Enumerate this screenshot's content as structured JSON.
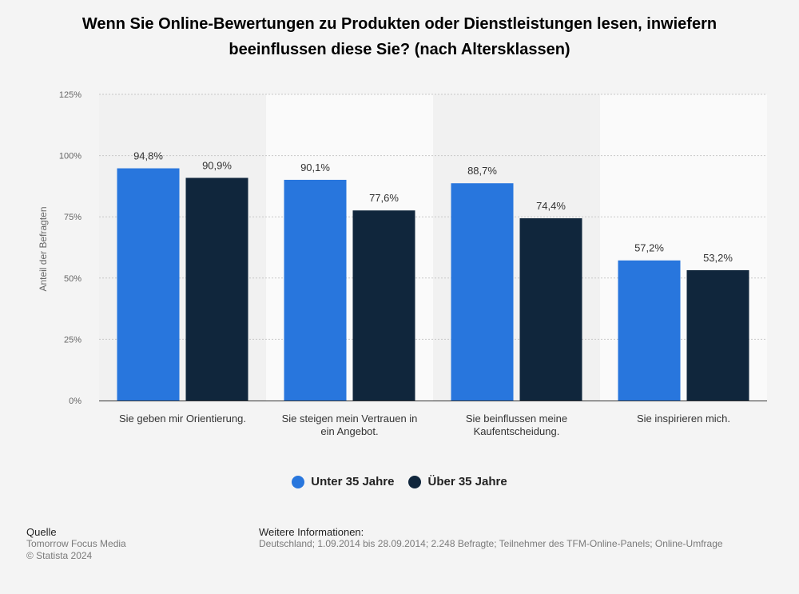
{
  "chart_data": {
    "type": "bar",
    "title": "Wenn Sie Online-Bewertungen zu Produkten oder Dienstleistungen lesen, inwiefern beeinflussen diese Sie? (nach Altersklassen)",
    "ylabel": "Anteil der Befragten",
    "xlabel": "",
    "ylim": [
      0,
      125
    ],
    "yticks": [
      "0%",
      "25%",
      "50%",
      "75%",
      "100%",
      "125%"
    ],
    "categories": [
      [
        "Sie geben mir Orientierung."
      ],
      [
        "Sie steigen mein Vertrauen in",
        "ein Angebot."
      ],
      [
        "Sie beinflussen meine",
        "Kaufentscheidung."
      ],
      [
        "Sie inspirieren mich."
      ]
    ],
    "series": [
      {
        "name": "Unter 35 Jahre",
        "color": "#2876dd",
        "values": [
          94.8,
          90.1,
          88.7,
          57.2
        ],
        "labels": [
          "94,8%",
          "90,1%",
          "88,7%",
          "57,2%"
        ]
      },
      {
        "name": "Über 35 Jahre",
        "color": "#10263c",
        "values": [
          90.9,
          77.6,
          74.4,
          53.2
        ],
        "labels": [
          "90,9%",
          "77,6%",
          "74,4%",
          "53,2%"
        ]
      }
    ],
    "grid": true,
    "legend_position": "bottom"
  },
  "source": {
    "heading": "Quelle",
    "lines": [
      "Tomorrow Focus Media",
      "© Statista 2024"
    ]
  },
  "info": {
    "heading": "Weitere Informationen:",
    "text": "Deutschland; 1.09.2014 bis 28.09.2014; 2.248 Befragte; Teilnehmer des TFM-Online-Panels; Online-Umfrage"
  }
}
